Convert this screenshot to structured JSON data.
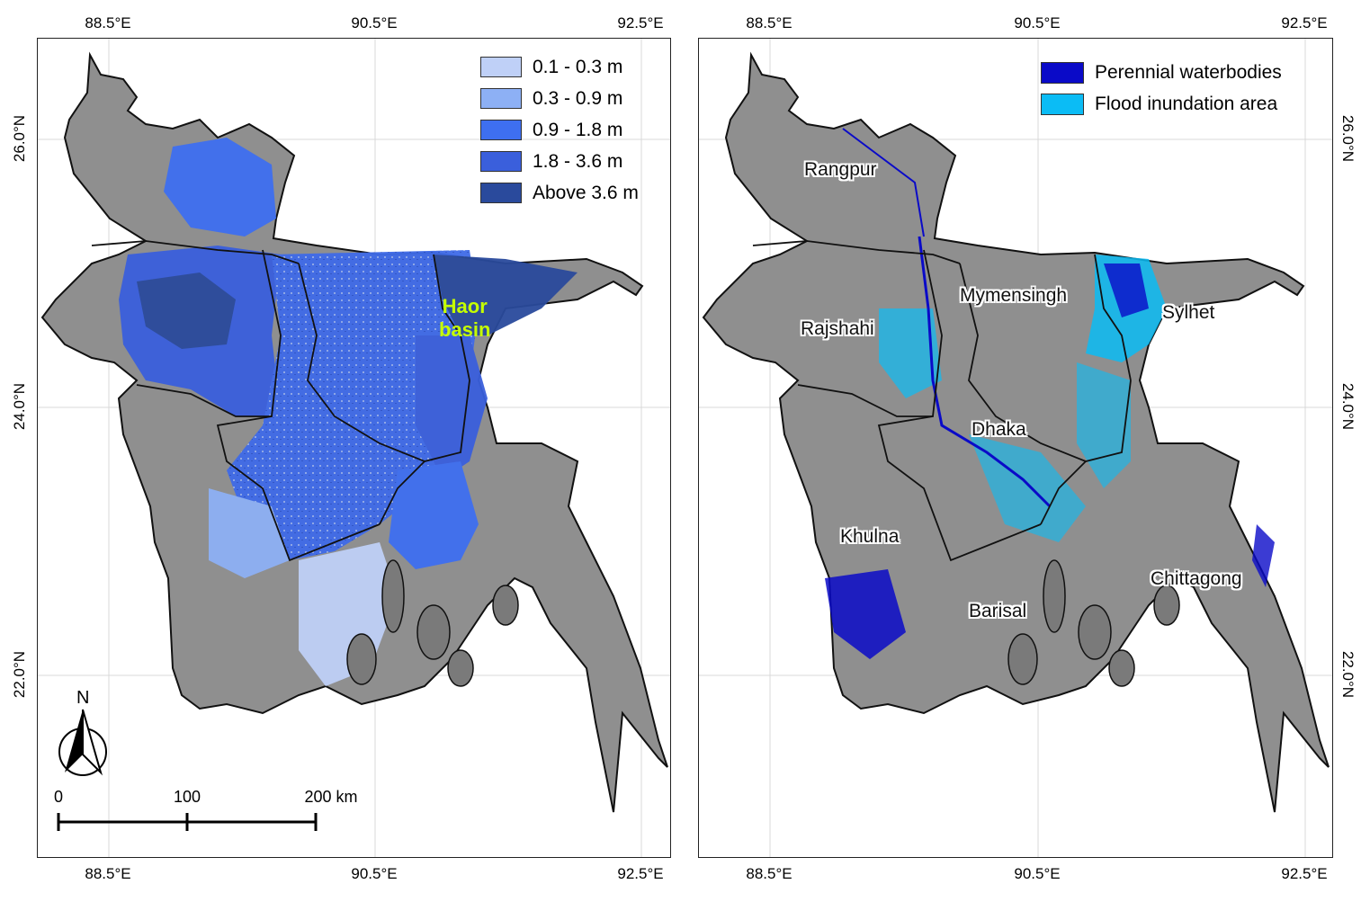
{
  "left_map": {
    "top_lon_labels": [
      "88.5°E",
      "90.5°E",
      "92.5°E"
    ],
    "bottom_lon_labels": [
      "88.5°E",
      "90.5°E",
      "92.5°E"
    ],
    "lat_labels": [
      "26.0°N",
      "24.0°N",
      "22.0°N"
    ],
    "legend": [
      {
        "label": "0.1 - 0.3 m",
        "color": "#bfd0f7"
      },
      {
        "label": "0.3 - 0.9 m",
        "color": "#8db0f5"
      },
      {
        "label": "0.9 - 1.8 m",
        "color": "#3e6ff0"
      },
      {
        "label": "1.8 - 3.6 m",
        "color": "#3a5fdc"
      },
      {
        "label": "Above 3.6 m",
        "color": "#2a4a9c"
      }
    ],
    "annotation_line1": "Haor",
    "annotation_line2": "basin",
    "north_label": "N",
    "scale_bar": {
      "labels": [
        "0",
        "100",
        "200 km"
      ]
    }
  },
  "right_map": {
    "top_lon_labels": [
      "88.5°E",
      "90.5°E",
      "92.5°E"
    ],
    "bottom_lon_labels": [
      "88.5°E",
      "90.5°E",
      "92.5°E"
    ],
    "lat_labels": [
      "26.0°N",
      "24.0°N",
      "22.0°N"
    ],
    "legend": [
      {
        "label": "Perennial waterbodies",
        "color": "#0a0ac8"
      },
      {
        "label": "Flood inundation area",
        "color": "#0bbcf5"
      }
    ],
    "divisions": [
      "Rangpur",
      "Rajshahi",
      "Mymensingh",
      "Sylhet",
      "Dhaka",
      "Khulna",
      "Barisal",
      "Chittagong"
    ]
  },
  "colors": {
    "land": "#8f8f8f",
    "boundary": "#111111"
  }
}
